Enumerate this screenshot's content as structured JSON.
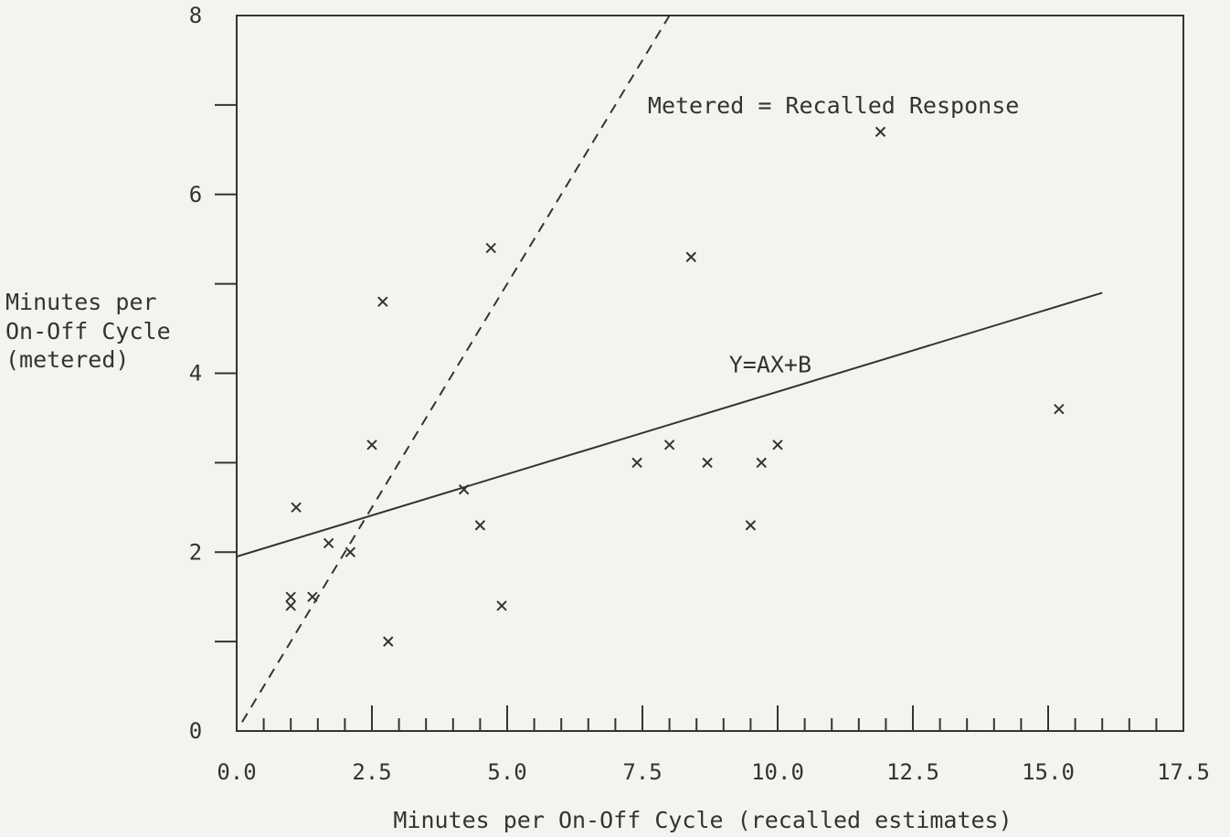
{
  "chart_data": {
    "type": "scatter",
    "title": "",
    "xlabel": "Minutes per On-Off Cycle (recalled estimates)",
    "ylabel_lines": [
      "Minutes per",
      "On-Off Cycle",
      "(metered)"
    ],
    "xlim": [
      0,
      17.5
    ],
    "ylim": [
      0,
      8
    ],
    "x_ticks": [
      "0.0",
      "2.5",
      "5.0",
      "7.5",
      "10.0",
      "12.5",
      "15.0",
      "17.5"
    ],
    "x_tick_values": [
      0,
      2.5,
      5,
      7.5,
      10,
      12.5,
      15,
      17.5
    ],
    "y_ticks": [
      "0",
      "2",
      "4",
      "6",
      "8"
    ],
    "y_tick_values": [
      0,
      2,
      4,
      6,
      8
    ],
    "grid": false,
    "series": [
      {
        "points": [
          {
            "x": 1.0,
            "y": 1.5
          },
          {
            "x": 1.0,
            "y": 1.4
          },
          {
            "x": 1.1,
            "y": 2.5
          },
          {
            "x": 1.4,
            "y": 1.5
          },
          {
            "x": 1.7,
            "y": 2.1
          },
          {
            "x": 2.1,
            "y": 2.0
          },
          {
            "x": 2.5,
            "y": 3.2
          },
          {
            "x": 2.7,
            "y": 4.8
          },
          {
            "x": 2.8,
            "y": 1.0
          },
          {
            "x": 4.2,
            "y": 2.7
          },
          {
            "x": 4.5,
            "y": 2.3
          },
          {
            "x": 4.7,
            "y": 5.4
          },
          {
            "x": 4.9,
            "y": 1.4
          },
          {
            "x": 7.4,
            "y": 3.0
          },
          {
            "x": 8.0,
            "y": 3.2
          },
          {
            "x": 8.4,
            "y": 5.3
          },
          {
            "x": 8.7,
            "y": 3.0
          },
          {
            "x": 9.5,
            "y": 2.3
          },
          {
            "x": 9.7,
            "y": 3.0
          },
          {
            "x": 10.0,
            "y": 3.2
          },
          {
            "x": 11.9,
            "y": 6.7
          },
          {
            "x": 15.2,
            "y": 3.6
          }
        ]
      }
    ],
    "lines": [
      {
        "label": "Metered = Recalled Response",
        "style": "dashed",
        "from": {
          "x": 0.1,
          "y": 0.1
        },
        "to": {
          "x": 8.0,
          "y": 8.0
        },
        "label_at": {
          "x": 7.6,
          "y": 7.0
        }
      },
      {
        "label": "Y=AX+B",
        "style": "solid",
        "from": {
          "x": 0.0,
          "y": 1.95
        },
        "to": {
          "x": 16.0,
          "y": 4.9
        },
        "label_at": {
          "x": 9.1,
          "y": 4.1
        }
      }
    ]
  }
}
